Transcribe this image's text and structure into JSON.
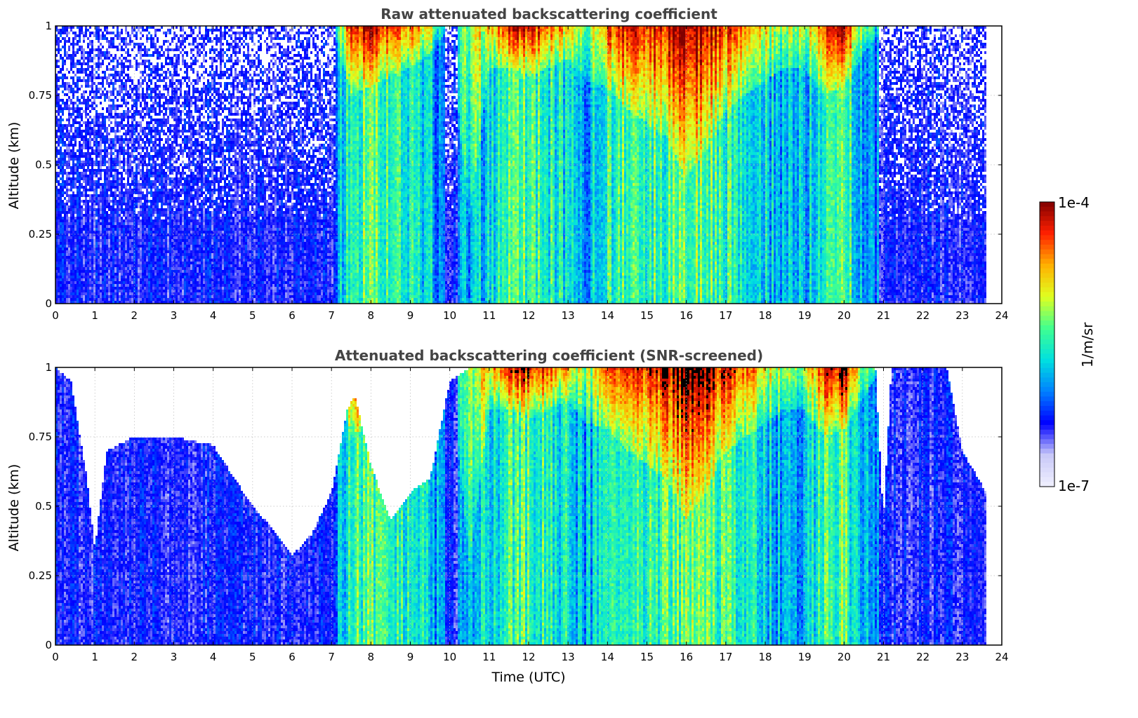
{
  "chart_data": [
    {
      "type": "heatmap",
      "title": "Raw attenuated backscattering coefficient",
      "xlabel": "",
      "ylabel": "Altitude (km)",
      "xlim": [
        0,
        24
      ],
      "ylim": [
        0,
        1
      ],
      "x_ticks": [
        "0",
        "1",
        "2",
        "3",
        "4",
        "5",
        "6",
        "7",
        "8",
        "9",
        "10",
        "11",
        "12",
        "13",
        "14",
        "15",
        "16",
        "17",
        "18",
        "19",
        "20",
        "21",
        "22",
        "23",
        "24"
      ],
      "y_ticks": [
        "0",
        "0.25",
        "0.5",
        "0.75",
        "1"
      ],
      "grid": true,
      "data_time_range_utc": [
        0,
        23.6
      ],
      "profile": {
        "hours": [
          0,
          1,
          2,
          3,
          4,
          5,
          6,
          7,
          7.5,
          8,
          8.5,
          9,
          9.5,
          10,
          10.5,
          11,
          11.5,
          12,
          12.5,
          13,
          13.5,
          14,
          14.5,
          15,
          15.5,
          16,
          16.5,
          17,
          17.5,
          18,
          18.5,
          19,
          19.5,
          20,
          20.5,
          21,
          21.5,
          22,
          22.5,
          23,
          23.6
        ],
        "cloud_top_intensity": [
          0.25,
          0.25,
          0.25,
          0.25,
          0.25,
          0.25,
          0.25,
          0.3,
          0.95,
          0.95,
          0.85,
          0.8,
          0.7,
          0.35,
          0.6,
          0.75,
          0.9,
          0.95,
          0.85,
          0.75,
          0.6,
          0.85,
          0.95,
          0.9,
          0.95,
          1.0,
          0.95,
          0.9,
          0.85,
          0.7,
          0.6,
          0.65,
          0.9,
          1.0,
          0.6,
          0.4,
          0.45,
          0.35,
          0.3,
          0.25,
          0.2
        ],
        "cloud_base_km": [
          1,
          1,
          1,
          1,
          1,
          1,
          1,
          1,
          0.76,
          0.78,
          0.82,
          0.85,
          0.9,
          1,
          0.3,
          0.85,
          0.85,
          0.82,
          0.85,
          0.88,
          0.8,
          0.78,
          0.7,
          0.65,
          0.6,
          0.45,
          0.55,
          0.7,
          0.75,
          0.8,
          0.85,
          0.85,
          0.75,
          0.78,
          0.9,
          1,
          1,
          1,
          1,
          1,
          1
        ]
      }
    },
    {
      "type": "heatmap",
      "title": "Attenuated backscattering coefficient (SNR-screened)",
      "xlabel": "Time (UTC)",
      "ylabel": "Altitude (km)",
      "xlim": [
        0,
        24
      ],
      "ylim": [
        0,
        1
      ],
      "x_ticks": [
        "0",
        "1",
        "2",
        "3",
        "4",
        "5",
        "6",
        "7",
        "8",
        "9",
        "10",
        "11",
        "12",
        "13",
        "14",
        "15",
        "16",
        "17",
        "18",
        "19",
        "20",
        "21",
        "22",
        "23",
        "24"
      ],
      "y_ticks": [
        "0",
        "0.25",
        "0.5",
        "0.75",
        "1"
      ],
      "grid": true,
      "data_time_range_utc": [
        0,
        23.6
      ],
      "screened_top_km": {
        "hours": [
          0,
          0.4,
          0.8,
          1,
          1.3,
          2,
          3,
          4,
          5,
          5.5,
          6,
          6.5,
          7,
          7.4,
          7.6,
          8,
          8.5,
          9,
          9.5,
          10,
          10.5,
          20.8,
          21,
          21.2,
          22.6,
          23,
          23.6
        ],
        "values": [
          1,
          0.95,
          0.6,
          0.35,
          0.7,
          0.75,
          0.75,
          0.72,
          0.5,
          0.42,
          0.32,
          0.4,
          0.55,
          0.85,
          0.9,
          0.65,
          0.45,
          0.55,
          0.6,
          0.95,
          1,
          1,
          0.45,
          1,
          1,
          0.7,
          0.55
        ]
      }
    }
  ],
  "colorbar": {
    "label": "1/m/sr",
    "max_label": "1e-4",
    "min_label": "1e-7",
    "colormap": [
      "#f0f0ff",
      "#c8c8f8",
      "#0000ff",
      "#0080ff",
      "#00e0e0",
      "#40ff90",
      "#e0ff20",
      "#ffb000",
      "#ff2000",
      "#800000"
    ]
  }
}
